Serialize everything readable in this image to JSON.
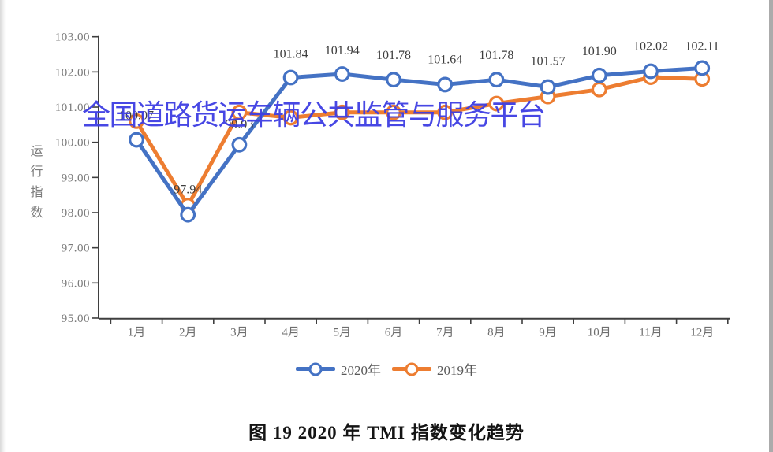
{
  "watermark": "全国道路货运车辆公共监管与服务平台",
  "caption": "图 19 2020 年 TMI 指数变化趋势",
  "chart_data": {
    "type": "line",
    "title": "图 19 2020 年 TMI 指数变化趋势",
    "xlabel": "",
    "ylabel": "运行指数",
    "categories": [
      "1月",
      "2月",
      "3月",
      "4月",
      "5月",
      "6月",
      "7月",
      "8月",
      "9月",
      "10月",
      "11月",
      "12月"
    ],
    "ylim": [
      95,
      103
    ],
    "ytick_labels": [
      "103.00",
      "102.00",
      "101.00",
      "100.00",
      "99.00",
      "98.00",
      "97.00",
      "96.00",
      "95.00"
    ],
    "grid": false,
    "legend_position": "bottom",
    "series": [
      {
        "name": "2020年",
        "color": "#4472C4",
        "marker": "open-circle",
        "values": [
          100.07,
          97.94,
          99.93,
          101.84,
          101.94,
          101.78,
          101.64,
          101.78,
          101.57,
          101.9,
          102.02,
          102.11
        ],
        "point_labels": [
          "100.07",
          "97.94",
          "99.93",
          "101.84",
          "101.94",
          "101.78",
          "101.64",
          "101.78",
          "101.57",
          "101.90",
          "102.02",
          "102.11"
        ]
      },
      {
        "name": "2019年",
        "color": "#ED7D31",
        "marker": "open-circle",
        "values": [
          100.6,
          98.2,
          100.85,
          100.7,
          100.85,
          100.85,
          100.85,
          101.1,
          101.3,
          101.5,
          101.85,
          101.8
        ]
      }
    ]
  },
  "colors": {
    "series_2020": "#4472C4",
    "series_2019": "#ED7D31",
    "watermark": "#3E3EE3",
    "axis": "#3f3f3f",
    "tick_label": "#7a7a7a",
    "data_label": "#3d3d3d"
  }
}
